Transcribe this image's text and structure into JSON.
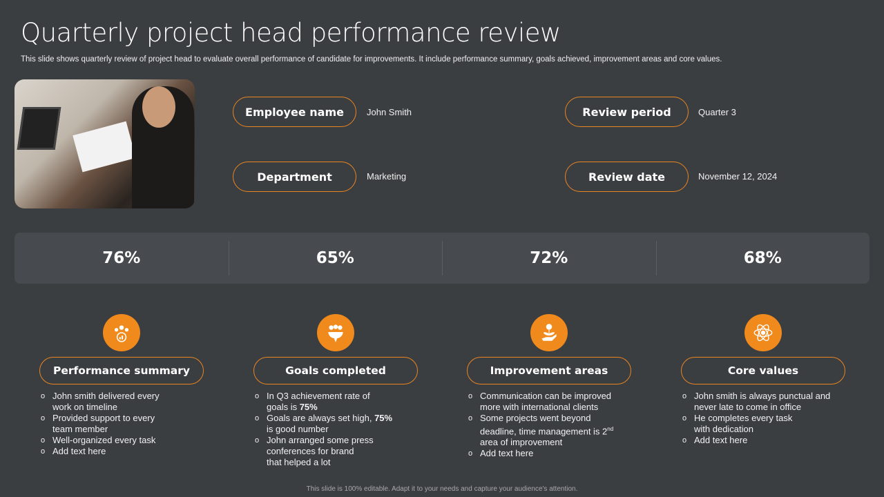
{
  "title": "Quarterly project head performance review",
  "subtitle": "This slide shows quarterly review of project head to evaluate overall performance of candidate for improvements. It include performance summary, goals achieved, improvement areas and core values.",
  "info": {
    "employee_name_label": "Employee name",
    "employee_name": "John Smith",
    "department_label": "Department",
    "department": "Marketing",
    "review_period_label": "Review period",
    "review_period": "Quarter 3",
    "review_date_label": "Review date",
    "review_date": "November 12, 2024"
  },
  "percentages": [
    "76%",
    "65%",
    "72%",
    "68%"
  ],
  "accent": "#f08a1c",
  "sections": [
    {
      "icon": "team-growth-icon",
      "heading": "Performance summary",
      "bullets": [
        [
          {
            "t": "John smith delivered every\nwork on timeline"
          }
        ],
        [
          {
            "t": "Provided support to every\nteam member"
          }
        ],
        [
          {
            "t": "Well-organized every task"
          }
        ],
        [
          {
            "t": "Add text here"
          }
        ]
      ]
    },
    {
      "icon": "team-target-icon",
      "heading": "Goals completed",
      "bullets": [
        [
          {
            "t": "In Q3 achievement rate of\ngoals is "
          },
          {
            "t": "75%",
            "b": true
          }
        ],
        [
          {
            "t": "Goals are always set high, "
          },
          {
            "t": "75%",
            "b": true
          },
          {
            "t": "\nis good number"
          }
        ],
        [
          {
            "t": "John arranged some press\nconferences for brand\nthat helped a lot"
          }
        ]
      ]
    },
    {
      "icon": "money-plant-hand-icon",
      "heading": "Improvement areas",
      "bullets": [
        [
          {
            "t": "Communication can be improved\nmore with international clients"
          }
        ],
        [
          {
            "t": "Some projects went beyond\ndeadline, time management is 2"
          },
          {
            "t": "nd",
            "sup": true
          },
          {
            "t": "\narea of improvement"
          }
        ],
        [
          {
            "t": "Add text here"
          }
        ]
      ]
    },
    {
      "icon": "atom-person-icon",
      "heading": "Core values",
      "bullets": [
        [
          {
            "t": "John smith is always punctual and\nnever late to come in office"
          }
        ],
        [
          {
            "t": "He completes every task\nwith dedication"
          }
        ],
        [
          {
            "t": "Add text here"
          }
        ]
      ]
    }
  ],
  "footer": "This slide is 100% editable. Adapt it to your needs and capture your audience's attention."
}
